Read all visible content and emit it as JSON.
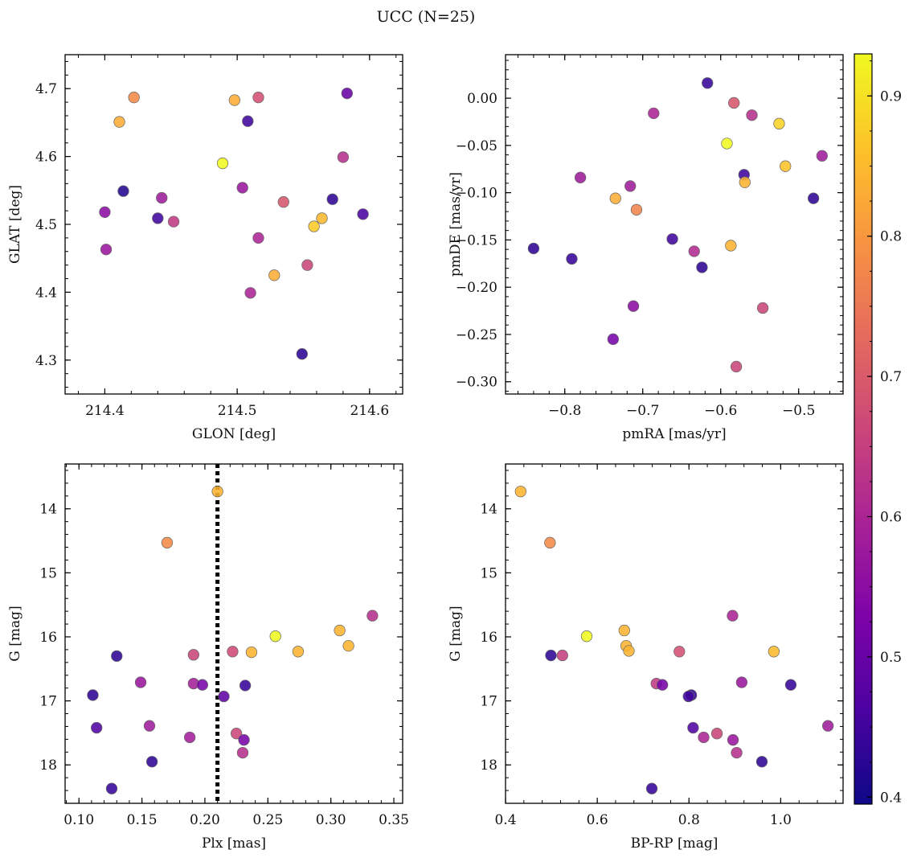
{
  "figure": {
    "title": "UCC (N=25)",
    "colorbar": {
      "colormap": "plasma",
      "range": [
        0.395,
        0.93
      ],
      "ticks": [
        "0.4",
        "0.5",
        "0.6",
        "0.7",
        "0.8",
        "0.9"
      ],
      "tick_values": [
        0.4,
        0.5,
        0.6,
        0.7,
        0.8,
        0.9
      ]
    }
  },
  "chart_data": [
    {
      "type": "scatter",
      "xlabel": "GLON [deg]",
      "ylabel": "GLAT [deg]",
      "xlim": [
        214.37,
        214.625
      ],
      "ylim": [
        4.25,
        4.75
      ],
      "y_inverted": false,
      "xticks": [
        214.4,
        214.5,
        214.6
      ],
      "xtick_labels": [
        "214.4",
        "214.5",
        "214.6"
      ],
      "yticks": [
        4.3,
        4.4,
        4.5,
        4.6,
        4.7
      ],
      "ytick_labels": [
        "4.3",
        "4.4",
        "4.5",
        "4.6",
        "4.7"
      ],
      "x": [
        214.422,
        214.411,
        214.498,
        214.516,
        214.583,
        214.508,
        214.489,
        214.58,
        214.414,
        214.504,
        214.443,
        214.535,
        214.4,
        214.572,
        214.595,
        214.44,
        214.452,
        214.564,
        214.558,
        214.516,
        214.401,
        214.553,
        214.528,
        214.51,
        214.549
      ],
      "y": [
        4.687,
        4.651,
        4.683,
        4.687,
        4.693,
        4.652,
        4.59,
        4.599,
        4.549,
        4.554,
        4.539,
        4.533,
        4.518,
        4.537,
        4.515,
        4.509,
        4.504,
        4.509,
        4.497,
        4.48,
        4.463,
        4.44,
        4.425,
        4.399,
        4.309
      ],
      "c": [
        0.78,
        0.83,
        0.83,
        0.68,
        0.5,
        0.45,
        0.93,
        0.62,
        0.42,
        0.57,
        0.58,
        0.69,
        0.55,
        0.43,
        0.46,
        0.45,
        0.64,
        0.85,
        0.87,
        0.6,
        0.57,
        0.66,
        0.83,
        0.6,
        0.43
      ]
    },
    {
      "type": "scatter",
      "xlabel": "pmRA [mas/yr]",
      "ylabel": "pmDE [mas/yr]",
      "xlim": [
        -0.876,
        -0.443
      ],
      "ylim": [
        -0.313,
        0.046
      ],
      "y_inverted": false,
      "xticks": [
        -0.8,
        -0.7,
        -0.6,
        -0.5
      ],
      "xtick_labels": [
        "−0.8",
        "−0.7",
        "−0.6",
        "−0.5"
      ],
      "yticks": [
        -0.3,
        -0.25,
        -0.2,
        -0.15,
        -0.1,
        -0.05,
        0.0
      ],
      "ytick_labels": [
        "−0.30",
        "−0.25",
        "−0.20",
        "−0.15",
        "−0.10",
        "−0.05",
        "0.00"
      ],
      "x": [
        -0.617,
        -0.583,
        -0.56,
        -0.686,
        -0.525,
        -0.592,
        -0.47,
        -0.517,
        -0.57,
        -0.78,
        -0.569,
        -0.716,
        -0.481,
        -0.735,
        -0.708,
        -0.662,
        -0.84,
        -0.634,
        -0.587,
        -0.791,
        -0.624,
        -0.712,
        -0.546,
        -0.738,
        -0.58
      ],
      "y": [
        0.016,
        -0.005,
        -0.018,
        -0.016,
        -0.027,
        -0.048,
        -0.061,
        -0.072,
        -0.081,
        -0.084,
        -0.089,
        -0.093,
        -0.106,
        -0.106,
        -0.118,
        -0.149,
        -0.159,
        -0.162,
        -0.156,
        -0.17,
        -0.179,
        -0.22,
        -0.222,
        -0.255,
        -0.284
      ],
      "c": [
        0.44,
        0.69,
        0.62,
        0.6,
        0.88,
        0.93,
        0.58,
        0.86,
        0.45,
        0.58,
        0.84,
        0.58,
        0.43,
        0.83,
        0.77,
        0.45,
        0.43,
        0.61,
        0.84,
        0.44,
        0.43,
        0.55,
        0.66,
        0.52,
        0.66
      ]
    },
    {
      "type": "scatter",
      "xlabel": "Plx [mas]",
      "ylabel": "G [mag]",
      "xlim": [
        0.089,
        0.357
      ],
      "ylim": [
        13.3,
        18.6
      ],
      "y_inverted": true,
      "xticks": [
        0.1,
        0.15,
        0.2,
        0.25,
        0.3,
        0.35
      ],
      "xtick_labels": [
        "0.10",
        "0.15",
        "0.20",
        "0.25",
        "0.30",
        "0.35"
      ],
      "yticks": [
        14,
        15,
        16,
        17,
        18
      ],
      "ytick_labels": [
        "14",
        "15",
        "16",
        "17",
        "18"
      ],
      "vline": 0.21,
      "x": [
        0.21,
        0.17,
        0.333,
        0.307,
        0.256,
        0.314,
        0.237,
        0.222,
        0.274,
        0.13,
        0.191,
        0.111,
        0.149,
        0.191,
        0.198,
        0.232,
        0.215,
        0.114,
        0.156,
        0.188,
        0.225,
        0.231,
        0.23,
        0.158,
        0.126
      ],
      "y": [
        13.73,
        14.53,
        15.67,
        15.9,
        15.99,
        16.14,
        16.24,
        16.23,
        16.23,
        16.3,
        16.28,
        16.91,
        16.71,
        16.73,
        16.75,
        16.76,
        16.93,
        17.42,
        17.39,
        17.57,
        17.51,
        17.61,
        17.81,
        17.95,
        18.37
      ],
      "c": [
        0.84,
        0.78,
        0.62,
        0.84,
        0.93,
        0.84,
        0.84,
        0.67,
        0.84,
        0.43,
        0.66,
        0.43,
        0.57,
        0.59,
        0.52,
        0.44,
        0.49,
        0.47,
        0.58,
        0.59,
        0.66,
        0.52,
        0.62,
        0.43,
        0.44
      ]
    },
    {
      "type": "scatter",
      "xlabel": "BP-RP [mag]",
      "ylabel": "G [mag]",
      "xlim": [
        0.4,
        1.136
      ],
      "ylim": [
        13.3,
        18.6
      ],
      "y_inverted": true,
      "xticks": [
        0.4,
        0.6,
        0.8,
        1.0
      ],
      "xtick_labels": [
        "0.4",
        "0.6",
        "0.8",
        "1.0"
      ],
      "yticks": [
        14,
        15,
        16,
        17,
        18
      ],
      "ytick_labels": [
        "14",
        "15",
        "16",
        "17",
        "18"
      ],
      "x": [
        0.433,
        0.497,
        0.895,
        0.659,
        0.577,
        0.663,
        0.669,
        0.779,
        0.985,
        0.499,
        0.524,
        0.729,
        0.742,
        0.805,
        0.799,
        0.915,
        1.022,
        0.809,
        1.103,
        0.832,
        0.861,
        0.896,
        0.904,
        0.959,
        0.719
      ],
      "y": [
        13.73,
        14.53,
        15.67,
        15.9,
        15.99,
        16.14,
        16.22,
        16.23,
        16.23,
        16.29,
        16.29,
        16.73,
        16.75,
        16.91,
        16.93,
        16.71,
        16.75,
        17.42,
        17.39,
        17.57,
        17.51,
        17.61,
        17.81,
        17.95,
        18.37
      ],
      "c": [
        0.84,
        0.78,
        0.6,
        0.84,
        0.93,
        0.84,
        0.84,
        0.68,
        0.85,
        0.43,
        0.65,
        0.64,
        0.52,
        0.43,
        0.45,
        0.57,
        0.44,
        0.47,
        0.58,
        0.6,
        0.66,
        0.57,
        0.62,
        0.43,
        0.44
      ]
    }
  ]
}
